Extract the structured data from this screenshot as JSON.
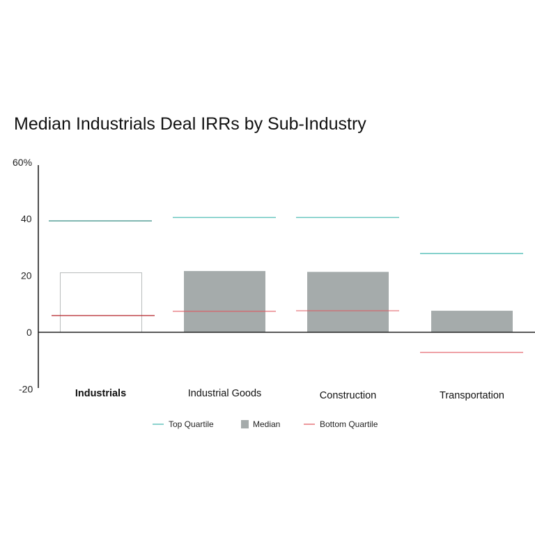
{
  "chart_data": {
    "type": "bar",
    "title": "Median Industrials Deal IRRs by Sub-Industry",
    "xlabel": "",
    "ylabel": "",
    "ylim": [
      -20,
      60
    ],
    "yticks": [
      -20,
      0,
      20,
      40,
      60
    ],
    "ytick_labels": [
      "-20",
      "0",
      "20",
      "40",
      "60%"
    ],
    "grid": false,
    "legend_position": "bottom",
    "categories": [
      "Industrials",
      "Industrial Goods",
      "Construction",
      "Transportation"
    ],
    "series": [
      {
        "name": "Top Quartile",
        "kind": "line-marker",
        "values": [
          39.3,
          40.5,
          40.5,
          27.8
        ]
      },
      {
        "name": "Median",
        "kind": "bar",
        "values": [
          21,
          21.6,
          21.3,
          7.6
        ]
      },
      {
        "name": "Bottom Quartile",
        "kind": "line-marker",
        "values": [
          5.9,
          7.4,
          7.6,
          -7.1
        ]
      }
    ],
    "highlighted_category": "Industrials",
    "colors": {
      "top_quartile": "#3db5ad",
      "top_quartile_highlight": "#1f7f76",
      "median": "#a5abab",
      "median_highlight_outline": "#b8bcbc",
      "bottom_quartile": "#e0525a",
      "bottom_quartile_highlight": "#b3242a",
      "axis": "#222222"
    }
  }
}
